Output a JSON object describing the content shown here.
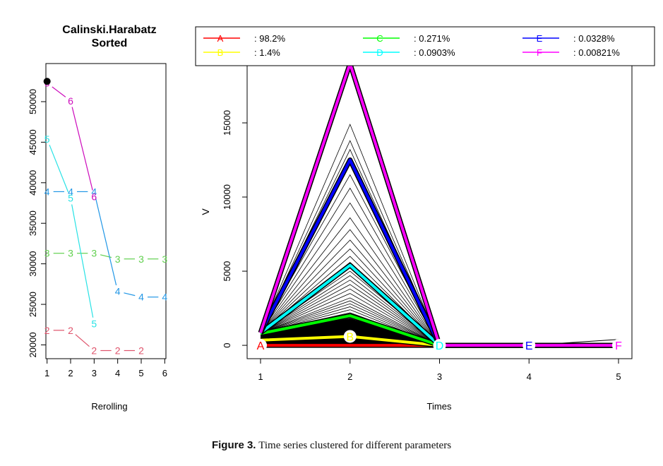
{
  "caption": {
    "lead": "Figure 3.",
    "text": "Time series clustered for different parameters"
  },
  "chart_data": [
    {
      "type": "line",
      "title": "Calinski.Harabatz",
      "subtitle": "Sorted",
      "xlabel": "Rerolling",
      "ylabel": "",
      "x_ticks": [
        1,
        2,
        3,
        4,
        5,
        6
      ],
      "y_ticks": [
        20000,
        25000,
        30000,
        35000,
        40000,
        45000,
        50000
      ],
      "xlim": [
        0.95,
        6.05
      ],
      "ylim": [
        18300,
        54700
      ],
      "highlight_point": {
        "x": 1,
        "y": 52500
      },
      "series": [
        {
          "name": "2",
          "color": "#DF536B",
          "x": [
            1,
            2,
            3,
            4,
            5
          ],
          "y": [
            21800,
            21800,
            19300,
            19300,
            19300
          ]
        },
        {
          "name": "3",
          "color": "#61D04F",
          "x": [
            1,
            2,
            3,
            4,
            5,
            6
          ],
          "y": [
            31300,
            31300,
            31300,
            30600,
            30600,
            30600
          ]
        },
        {
          "name": "4",
          "color": "#2297E6",
          "x": [
            1,
            2,
            3,
            4,
            5,
            6
          ],
          "y": [
            38900,
            38900,
            38900,
            26600,
            25900,
            25900
          ]
        },
        {
          "name": "5",
          "color": "#28E2E5",
          "x": [
            1,
            2,
            3
          ],
          "y": [
            45400,
            38100,
            22600
          ]
        },
        {
          "name": "6",
          "color": "#CD0BBC",
          "x": [
            1,
            2,
            3
          ],
          "y": [
            52300,
            50100,
            38300
          ]
        }
      ]
    },
    {
      "type": "line",
      "title": "",
      "xlabel": "Times",
      "ylabel": "V",
      "x_ticks": [
        1,
        2,
        3,
        4,
        5
      ],
      "y_ticks": [
        0,
        5000,
        10000,
        15000
      ],
      "xlim": [
        0.85,
        5.15
      ],
      "ylim": [
        -900,
        19000
      ],
      "legend": [
        {
          "label": "A",
          "value": ": 98.2%",
          "color": "#FF0000"
        },
        {
          "label": "B",
          "value": ": 1.4%",
          "color": "#FFFF00"
        },
        {
          "label": "C",
          "value": ": 0.271%",
          "color": "#00FF00"
        },
        {
          "label": "D",
          "value": ": 0.0903%",
          "color": "#00FFFF"
        },
        {
          "label": "E",
          "value": ": 0.0328%",
          "color": "#0000FF"
        },
        {
          "label": "F",
          "value": ": 0.00821%",
          "color": "#FF00FF"
        }
      ],
      "background_peaks": [
        14900,
        13800,
        13200,
        12400,
        11500,
        10600,
        9600,
        8600,
        7800,
        7100,
        6500,
        6000,
        5600,
        5300,
        5000,
        4700,
        4400,
        4100,
        3800,
        3500,
        3200,
        3000,
        2800,
        2600,
        2400,
        2200,
        2000,
        1800,
        1600,
        1400,
        1200,
        1000,
        800,
        600
      ],
      "series": [
        {
          "name": "A",
          "color": "#FF0000",
          "x": [
            1,
            2,
            3,
            4,
            5
          ],
          "y": [
            0,
            0,
            0,
            0,
            0
          ]
        },
        {
          "name": "B",
          "color": "#FFFF00",
          "x": [
            1,
            2,
            3,
            4,
            5
          ],
          "y": [
            350,
            600,
            0,
            0,
            0
          ]
        },
        {
          "name": "C",
          "color": "#00FF00",
          "x": [
            1,
            2,
            3,
            4,
            5
          ],
          "y": [
            800,
            2000,
            0,
            0,
            0
          ]
        },
        {
          "name": "D",
          "color": "#00FFFF",
          "x": [
            1,
            2,
            3,
            4,
            5
          ],
          "y": [
            850,
            5400,
            0,
            0,
            0
          ]
        },
        {
          "name": "E",
          "color": "#0000FF",
          "x": [
            1,
            2,
            3,
            4,
            5
          ],
          "y": [
            850,
            12500,
            0,
            0,
            0
          ]
        },
        {
          "name": "F",
          "color": "#FF00FF",
          "x": [
            1,
            2,
            3,
            4,
            5
          ],
          "y": [
            850,
            19000,
            0,
            0,
            0
          ]
        }
      ],
      "point_labels": [
        {
          "label": "A",
          "x": 1,
          "y": 0,
          "color": "#FF0000"
        },
        {
          "label": "B",
          "x": 2,
          "y": 600,
          "color": "#FFFF00"
        },
        {
          "label": "D",
          "x": 3,
          "y": 0,
          "color": "#00FFFF"
        },
        {
          "label": "E",
          "x": 4,
          "y": 0,
          "color": "#0000FF"
        },
        {
          "label": "F",
          "x": 5,
          "y": 0,
          "color": "#FF00FF"
        }
      ]
    }
  ]
}
